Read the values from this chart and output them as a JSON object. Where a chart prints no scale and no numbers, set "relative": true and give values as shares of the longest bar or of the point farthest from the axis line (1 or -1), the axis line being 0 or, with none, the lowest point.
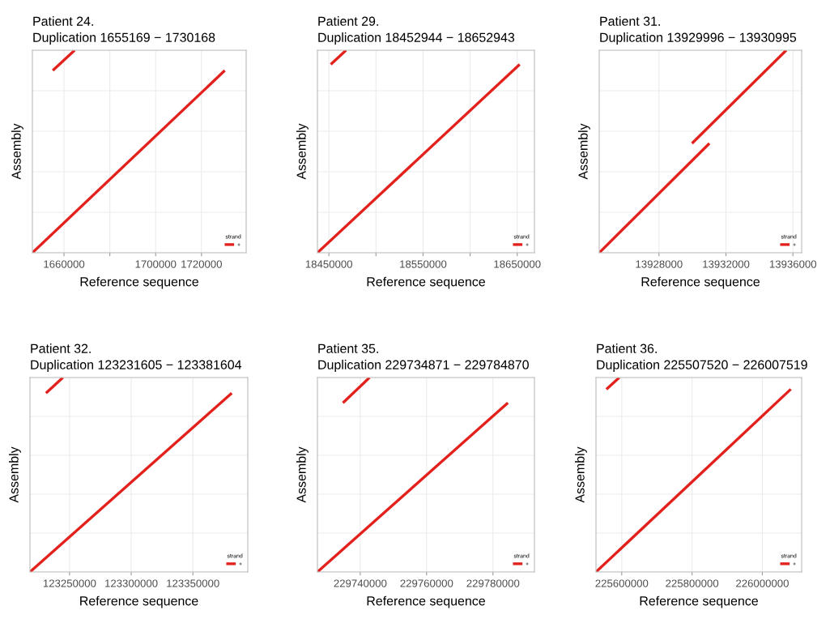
{
  "chart_data": [
    {
      "type": "line",
      "title": "Patient 24.",
      "subtitle": "Duplication 1655169 − 1730168",
      "xlabel": "Reference sequence",
      "ylabel": "Assembly",
      "legend_title": "strand",
      "relative": true,
      "xlim": [
        1646200,
        1739500
      ],
      "xticks": [
        1660000,
        {
          "value": 1680000,
          "label": null
        },
        1700000,
        1720000
      ],
      "tick_labels": "x",
      "grid": true,
      "legend": "bottom right",
      "series": [
        {
          "name": "+",
          "color": "#e3211c",
          "x": [
            1646200,
            1730170
          ],
          "values": [
            0,
            0.9
          ]
        },
        {
          "color": "#e3211c",
          "x": [
            1655100,
            1664650
          ],
          "values": [
            0.9,
            1
          ]
        }
      ]
    },
    {
      "type": "line",
      "title": "Patient 29.",
      "subtitle": "Duplication 18452944 − 18652943",
      "xlabel": "Reference sequence",
      "ylabel": "Assembly",
      "legend_title": "strand",
      "relative": true,
      "xlim": [
        18437800,
        18668300
      ],
      "xticks": [
        18450000,
        {
          "value": 18500000,
          "label": null
        },
        18550000,
        {
          "value": 18600000,
          "label": null
        },
        18650000
      ],
      "tick_labels": "x",
      "grid": true,
      "legend": "bottom right",
      "series": [
        {
          "name": "+",
          "color": "#e3211c",
          "x": [
            18437800,
            18652600
          ],
          "values": [
            0,
            0.93
          ]
        },
        {
          "color": "#e3211c",
          "x": [
            18452000,
            18468200
          ],
          "values": [
            0.93,
            1
          ]
        }
      ]
    },
    {
      "type": "line",
      "title": "Patient 31.",
      "subtitle": "Duplication 13929996 − 13930995",
      "xlabel": "Reference sequence",
      "ylabel": "Assembly",
      "legend_title": "strand",
      "relative": true,
      "xlim": [
        13924430,
        13936520
      ],
      "xticks": [
        13928000,
        13932000,
        13936000
      ],
      "tick_labels": "x",
      "grid": true,
      "legend": "bottom right",
      "series": [
        {
          "name": "+",
          "color": "#e3211c",
          "x": [
            13924430,
            13931010
          ],
          "values": [
            0,
            0.54
          ]
        },
        {
          "color": "#e3211c",
          "x": [
            13929970,
            13935600
          ],
          "values": [
            0.54,
            1
          ]
        }
      ]
    },
    {
      "type": "line",
      "title": "Patient 32.",
      "subtitle": "Duplication 123231605 − 123381604",
      "xlabel": "Reference sequence",
      "ylabel": "Assembly",
      "legend_title": "strand",
      "relative": true,
      "xlim": [
        123217900,
        123394500
      ],
      "xticks": [
        123250000,
        123300000,
        123350000
      ],
      "tick_labels": "x",
      "grid": true,
      "legend": "bottom right",
      "series": [
        {
          "name": "+",
          "color": "#e3211c",
          "x": [
            123217900,
            123381500
          ],
          "values": [
            0,
            0.92
          ]
        },
        {
          "color": "#e3211c",
          "x": [
            123230900,
            123244600
          ],
          "values": [
            0.92,
            1
          ]
        }
      ]
    },
    {
      "type": "line",
      "title": "Patient 35.",
      "subtitle": "Duplication 229734871 − 229784870",
      "xlabel": "Reference sequence",
      "ylabel": "Assembly",
      "legend_title": "strand",
      "relative": true,
      "xlim": [
        229727100,
        229792500
      ],
      "xticks": [
        229740000,
        229760000,
        229780000
      ],
      "tick_labels": "x",
      "grid": true,
      "legend": "bottom right",
      "series": [
        {
          "name": "+",
          "color": "#e3211c",
          "x": [
            229727100,
            229784500
          ],
          "values": [
            0,
            0.87
          ]
        },
        {
          "color": "#e3211c",
          "x": [
            229734800,
            229742800
          ],
          "values": [
            0.87,
            1
          ]
        }
      ]
    },
    {
      "type": "line",
      "title": "Patient 36.",
      "subtitle": "Duplication 225507520 − 226007519",
      "xlabel": "Reference sequence",
      "ylabel": "Assembly",
      "legend_title": "strand",
      "relative": true,
      "xlim": [
        225526700,
        226111900
      ],
      "xticks": [
        225600000,
        225800000,
        226000000
      ],
      "tick_labels": "x",
      "grid": true,
      "legend": "bottom right",
      "series": [
        {
          "name": "+",
          "color": "#e3211c",
          "x": [
            225526700,
            226081000
          ],
          "values": [
            0,
            0.94
          ]
        },
        {
          "color": "#e3211c",
          "x": [
            225556400,
            225593000
          ],
          "values": [
            0.94,
            1
          ]
        }
      ]
    }
  ]
}
